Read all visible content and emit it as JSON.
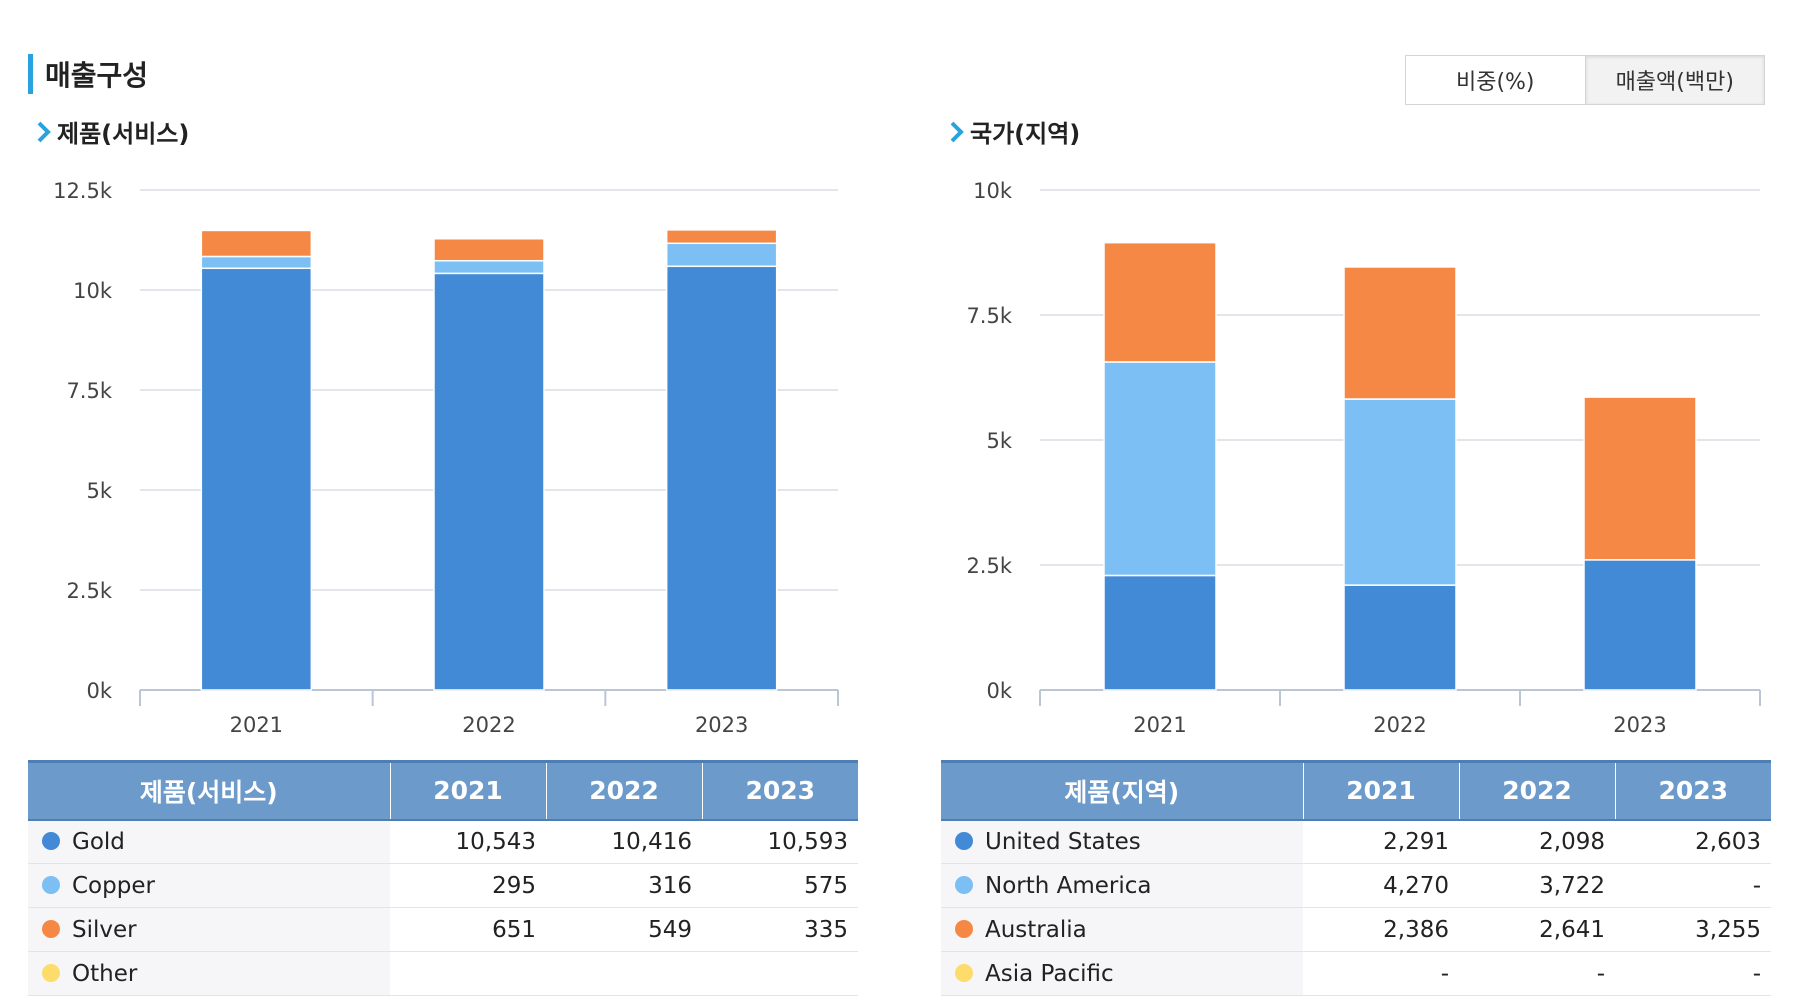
{
  "section_title": "매출구성",
  "toggle": {
    "options": [
      "비중(%)",
      "매출액(백만)"
    ],
    "active_index": 1
  },
  "colors": {
    "accent": "#29a3e0",
    "header": "#6c9bcb",
    "grid": "#d9dde3"
  },
  "charts": [
    {
      "subtitle": "제품(서비스)",
      "table_header": "제품(서비스)",
      "chart_data": {
        "type": "bar",
        "stacked": true,
        "categories": [
          "2021",
          "2022",
          "2023"
        ],
        "ylim": [
          0,
          12500
        ],
        "yticks": [
          0,
          2500,
          5000,
          7500,
          10000,
          12500
        ],
        "ytick_labels": [
          "0k",
          "2.5k",
          "5k",
          "7.5k",
          "10k",
          "12.5k"
        ],
        "series": [
          {
            "name": "Gold",
            "color": "#4289d6",
            "values": [
              10543,
              10416,
              10593
            ],
            "labels": [
              "10,543",
              "10,416",
              "10,593"
            ]
          },
          {
            "name": "Copper",
            "color": "#7bbff5",
            "values": [
              295,
              316,
              575
            ],
            "labels": [
              "295",
              "316",
              "575"
            ]
          },
          {
            "name": "Silver",
            "color": "#f68845",
            "values": [
              651,
              549,
              335
            ],
            "labels": [
              "651",
              "549",
              "335"
            ]
          },
          {
            "name": "Other",
            "color": "#fddc6c",
            "values": [
              0,
              0,
              0
            ],
            "labels": [
              "",
              "",
              ""
            ]
          }
        ]
      }
    },
    {
      "subtitle": "국가(지역)",
      "table_header": "제품(지역)",
      "chart_data": {
        "type": "bar",
        "stacked": true,
        "categories": [
          "2021",
          "2022",
          "2023"
        ],
        "ylim": [
          0,
          10000
        ],
        "yticks": [
          0,
          2500,
          5000,
          7500,
          10000
        ],
        "ytick_labels": [
          "0k",
          "2.5k",
          "5k",
          "7.5k",
          "10k"
        ],
        "series": [
          {
            "name": "United States",
            "color": "#4289d6",
            "values": [
              2291,
              2098,
              2603
            ],
            "labels": [
              "2,291",
              "2,098",
              "2,603"
            ]
          },
          {
            "name": "North America",
            "color": "#7bbff5",
            "values": [
              4270,
              3722,
              0
            ],
            "labels": [
              "4,270",
              "3,722",
              "-"
            ]
          },
          {
            "name": "Australia",
            "color": "#f68845",
            "values": [
              2386,
              2641,
              3255
            ],
            "labels": [
              "2,386",
              "2,641",
              "3,255"
            ]
          },
          {
            "name": "Asia Pacific",
            "color": "#fddc6c",
            "values": [
              0,
              0,
              0
            ],
            "labels": [
              "-",
              "-",
              "-"
            ]
          }
        ]
      }
    }
  ]
}
